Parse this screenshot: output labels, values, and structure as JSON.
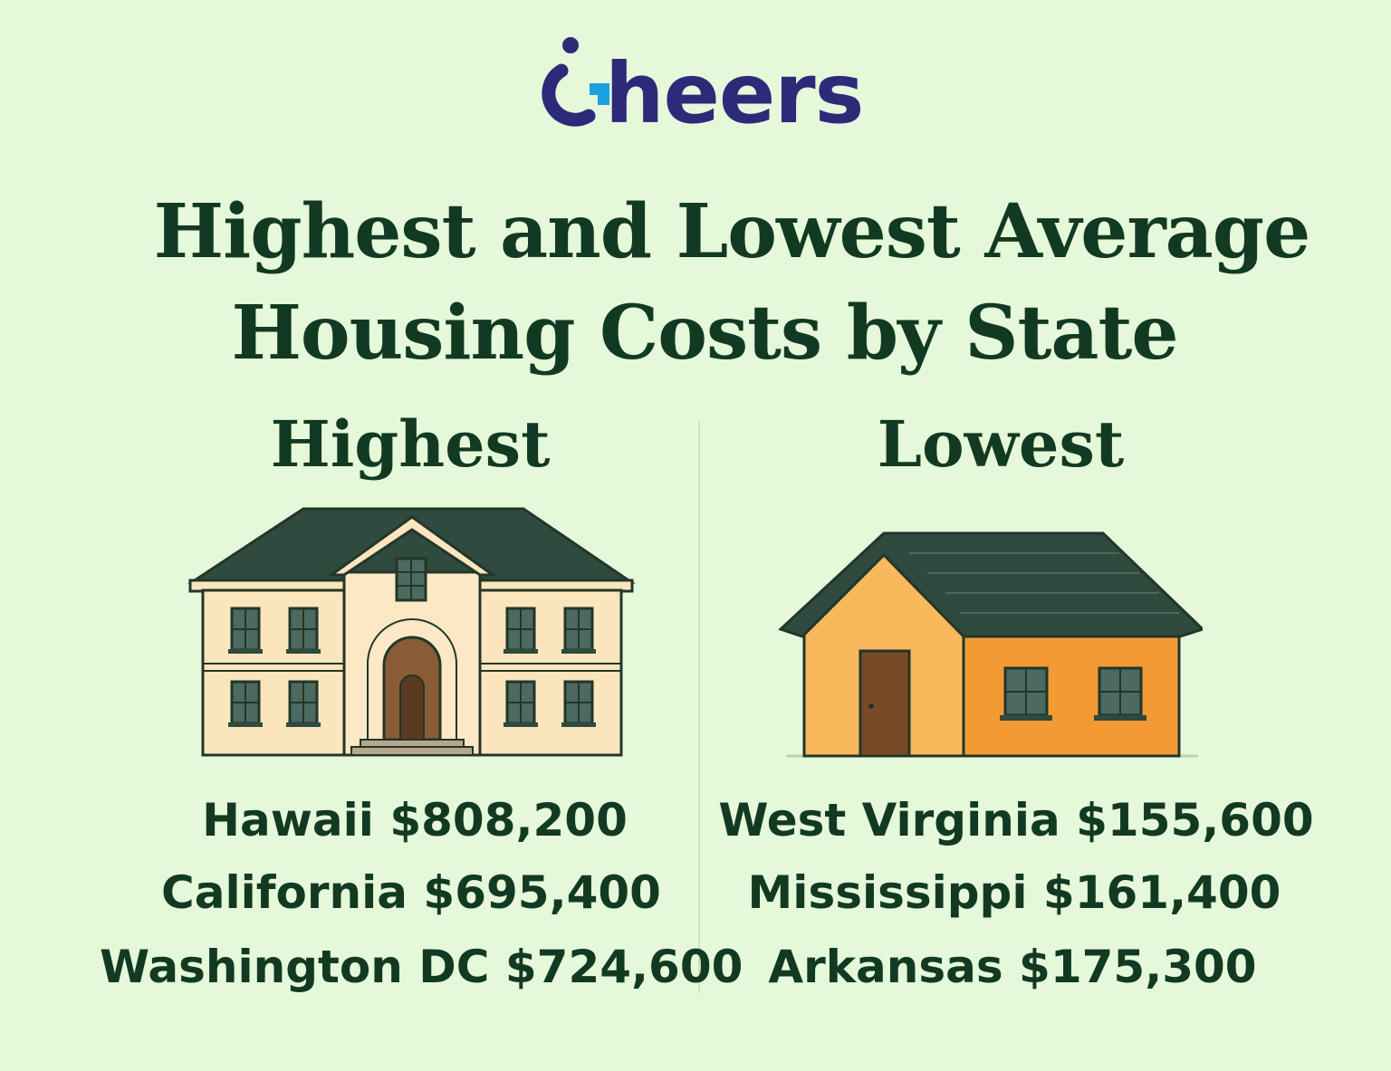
{
  "brand": {
    "name": "heers"
  },
  "title": {
    "line1": "Highest and Lowest Average",
    "line2": "Housing Costs by State"
  },
  "highest": {
    "heading": "Highest",
    "items": [
      {
        "state": "Hawaii",
        "cost": "$808,200"
      },
      {
        "state": "California",
        "cost": "$695,400"
      },
      {
        "state": "Washington DC",
        "cost": "$724,600"
      }
    ]
  },
  "lowest": {
    "heading": "Lowest",
    "items": [
      {
        "state": "West Virginia",
        "cost": "$155,600"
      },
      {
        "state": "Mississippi",
        "cost": "$161,400"
      },
      {
        "state": "Arkansas",
        "cost": "$175,300"
      }
    ]
  },
  "colors": {
    "background": "#e6f8da",
    "text": "#123a22",
    "brand": "#2d2a7a",
    "brand_accent": "#1da1e0"
  }
}
